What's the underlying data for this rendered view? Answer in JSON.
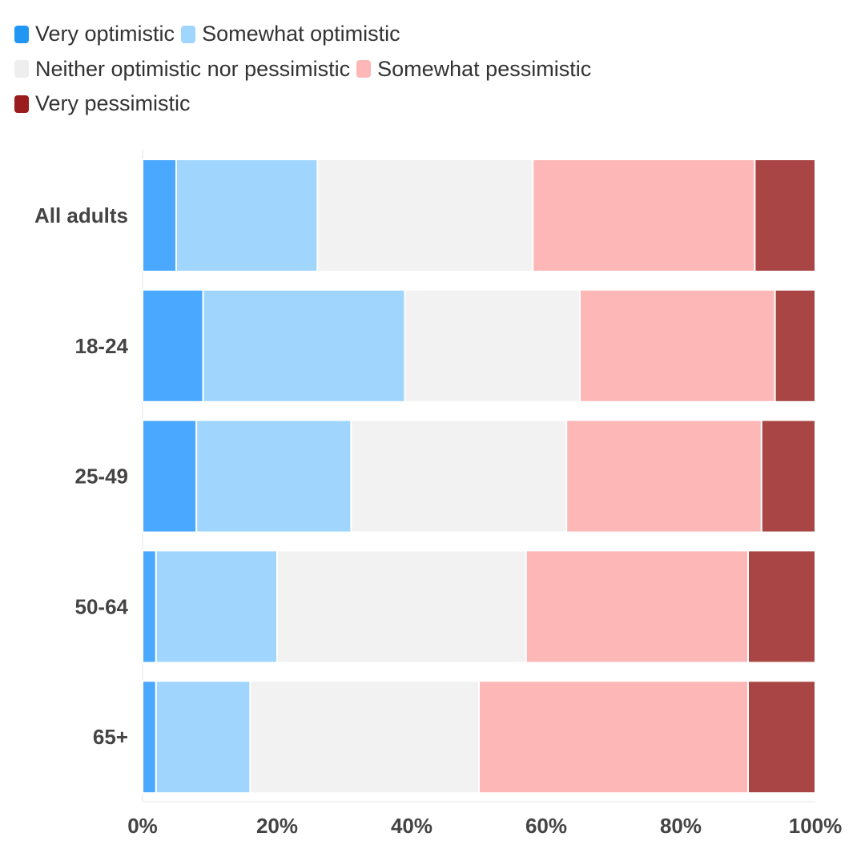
{
  "chart_data": {
    "type": "bar",
    "orientation": "horizontal",
    "stacked": true,
    "categories": [
      "All adults",
      "18-24",
      "25-49",
      "50-64",
      "65+"
    ],
    "series": [
      {
        "name": "Very optimistic",
        "color": "#4aa8ff",
        "values": [
          5,
          9,
          8,
          2,
          2
        ]
      },
      {
        "name": "Somewhat optimistic",
        "color": "#a0d6fd",
        "values": [
          21,
          30,
          23,
          18,
          14
        ]
      },
      {
        "name": "Neither optimistic nor pessimistic",
        "color": "#f2f2f2",
        "values": [
          32,
          26,
          32,
          37,
          34
        ]
      },
      {
        "name": "Somewhat pessimistic",
        "color": "#fdb7b7",
        "values": [
          33,
          29,
          29,
          33,
          40
        ]
      },
      {
        "name": "Very pessimistic",
        "color": "#aa4545",
        "values": [
          9,
          6,
          8,
          10,
          10
        ]
      }
    ],
    "xlim": [
      0,
      100
    ],
    "xticks": [
      "0%",
      "20%",
      "40%",
      "60%",
      "80%",
      "100%"
    ],
    "grid": false,
    "legend": "top-left"
  }
}
